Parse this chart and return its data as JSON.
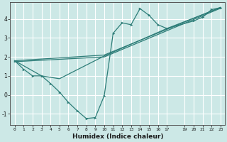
{
  "xlabel": "Humidex (Indice chaleur)",
  "bg_color": "#cce8e6",
  "line_color": "#2d7d78",
  "grid_color": "#ffffff",
  "xlim": [
    -0.5,
    23.5
  ],
  "ylim": [
    -1.6,
    4.9
  ],
  "xticks": [
    0,
    1,
    2,
    3,
    4,
    5,
    6,
    7,
    8,
    9,
    10,
    11,
    12,
    13,
    14,
    15,
    16,
    17,
    19,
    20,
    21,
    22,
    23
  ],
  "yticks": [
    -1,
    0,
    1,
    2,
    3,
    4
  ],
  "line1_x": [
    0,
    1,
    2,
    3,
    4,
    5,
    6,
    7,
    8,
    9,
    10,
    11,
    12,
    13,
    14,
    15,
    16,
    17,
    20,
    21,
    22,
    23
  ],
  "line1_y": [
    1.8,
    1.35,
    1.0,
    1.0,
    0.6,
    0.15,
    -0.4,
    -0.85,
    -1.25,
    -1.2,
    -0.05,
    3.25,
    3.8,
    3.7,
    4.55,
    4.2,
    3.7,
    3.5,
    3.9,
    4.1,
    4.5,
    4.6
  ],
  "line2_x": [
    0,
    3,
    5,
    10,
    17,
    23
  ],
  "line2_y": [
    1.8,
    1.0,
    0.85,
    2.05,
    3.5,
    4.6
  ],
  "line3_x": [
    0,
    10,
    23
  ],
  "line3_y": [
    1.8,
    2.1,
    4.62
  ],
  "line4_x": [
    0,
    10,
    23
  ],
  "line4_y": [
    1.75,
    2.0,
    4.57
  ]
}
